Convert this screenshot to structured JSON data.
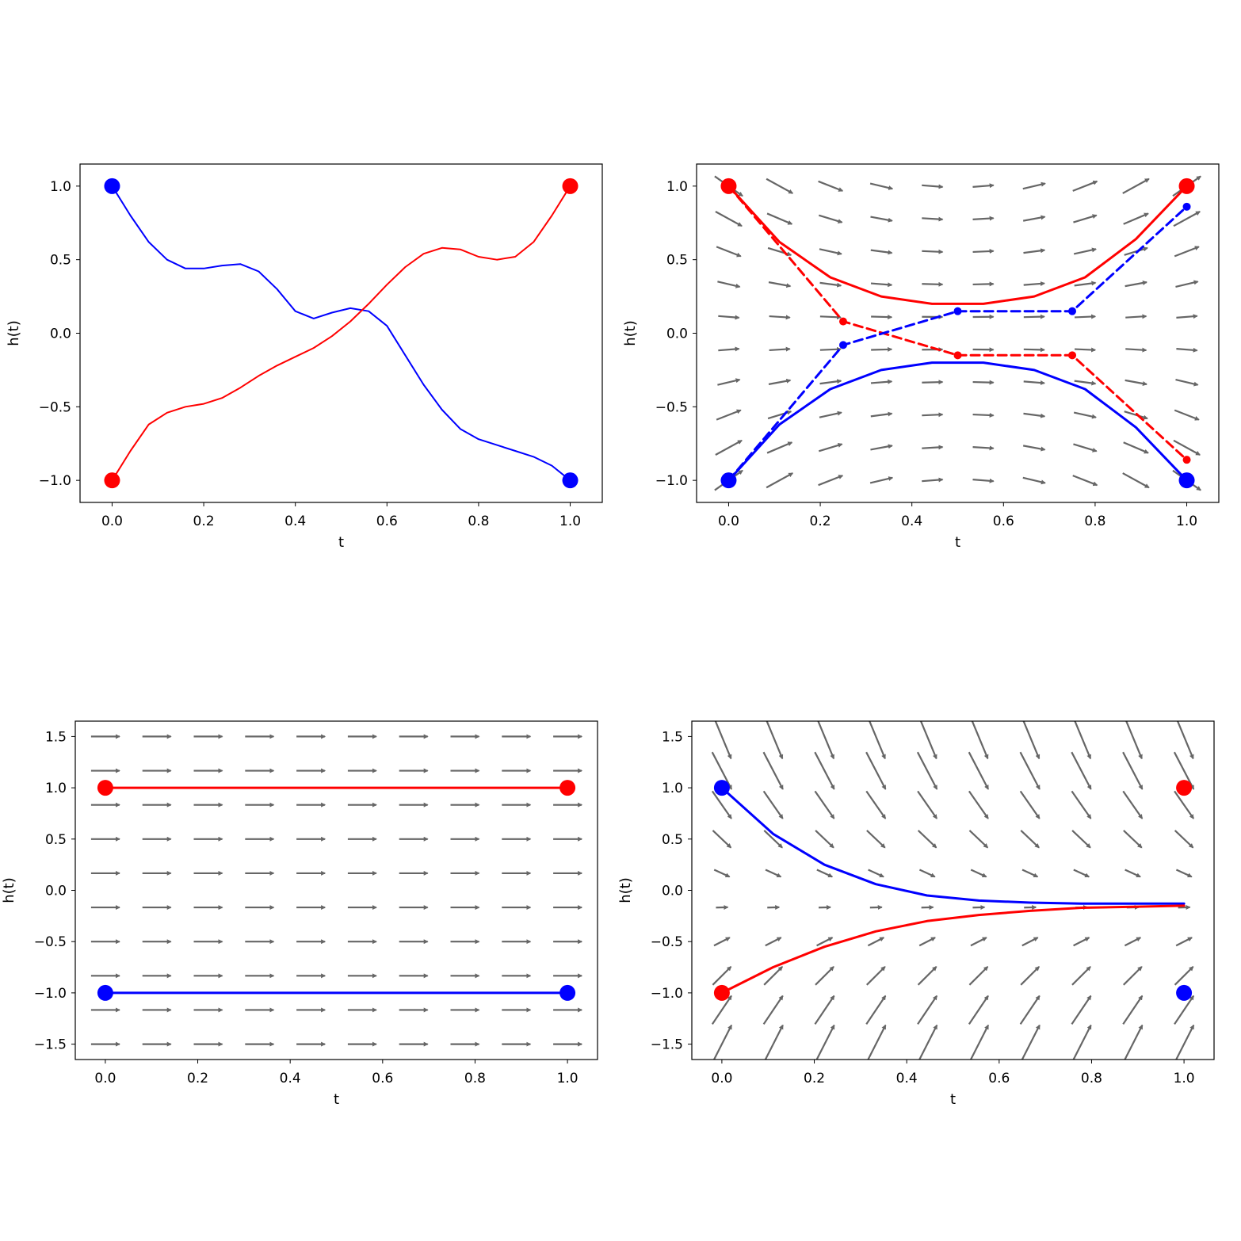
{
  "chart_data": [
    {
      "id": "top-left",
      "type": "line",
      "xlabel": "t",
      "ylabel": "h(t)",
      "xlim": [
        -0.07,
        1.07
      ],
      "ylim": [
        -1.15,
        1.15
      ],
      "xticks": [
        0.0,
        0.2,
        0.4,
        0.6,
        0.8,
        1.0
      ],
      "yticks": [
        -1.0,
        -0.5,
        0.0,
        0.5,
        1.0
      ],
      "vector_field": null,
      "series": [
        {
          "color": "#0000ff",
          "style": "solid",
          "width": 2,
          "x": [
            0.0,
            0.04,
            0.08,
            0.12,
            0.16,
            0.2,
            0.24,
            0.28,
            0.32,
            0.36,
            0.4,
            0.44,
            0.48,
            0.52,
            0.56,
            0.6,
            0.64,
            0.68,
            0.72,
            0.76,
            0.8,
            0.84,
            0.88,
            0.92,
            0.96,
            1.0
          ],
          "y": [
            1.0,
            0.8,
            0.62,
            0.5,
            0.44,
            0.44,
            0.46,
            0.47,
            0.42,
            0.3,
            0.15,
            0.1,
            0.14,
            0.17,
            0.15,
            0.05,
            -0.15,
            -0.35,
            -0.52,
            -0.65,
            -0.72,
            -0.76,
            -0.8,
            -0.84,
            -0.9,
            -1.0
          ]
        },
        {
          "color": "#ff0000",
          "style": "solid",
          "width": 2,
          "x": [
            0.0,
            0.04,
            0.08,
            0.12,
            0.16,
            0.2,
            0.24,
            0.28,
            0.32,
            0.36,
            0.4,
            0.44,
            0.48,
            0.52,
            0.56,
            0.6,
            0.64,
            0.68,
            0.72,
            0.76,
            0.8,
            0.84,
            0.88,
            0.92,
            0.96,
            1.0
          ],
          "y": [
            -1.0,
            -0.8,
            -0.62,
            -0.54,
            -0.5,
            -0.48,
            -0.44,
            -0.37,
            -0.29,
            -0.22,
            -0.16,
            -0.1,
            -0.02,
            0.08,
            0.2,
            0.33,
            0.45,
            0.54,
            0.58,
            0.57,
            0.52,
            0.5,
            0.52,
            0.62,
            0.8,
            1.0
          ]
        }
      ],
      "markers": [
        {
          "x": 0.0,
          "y": 1.0,
          "color": "#0000ff",
          "size": 10
        },
        {
          "x": 1.0,
          "y": -1.0,
          "color": "#0000ff",
          "size": 10
        },
        {
          "x": 0.0,
          "y": -1.0,
          "color": "#ff0000",
          "size": 10
        },
        {
          "x": 1.0,
          "y": 1.0,
          "color": "#ff0000",
          "size": 10
        }
      ]
    },
    {
      "id": "top-right",
      "type": "line",
      "xlabel": "t",
      "ylabel": "h(t)",
      "xlim": [
        -0.07,
        1.07
      ],
      "ylim": [
        -1.15,
        1.15
      ],
      "xticks": [
        0.0,
        0.2,
        0.4,
        0.6,
        0.8,
        1.0
      ],
      "yticks": [
        -1.0,
        -0.5,
        0.0,
        0.5,
        1.0
      ],
      "vector_field": {
        "kind": "saddle",
        "tmin": 0.0,
        "tmax": 1.0,
        "nx": 10,
        "hmin": -1.0,
        "hmax": 1.0,
        "ny": 10
      },
      "series": [
        {
          "color": "#ff0000",
          "style": "solid",
          "width": 3,
          "x": [
            0.0,
            0.111,
            0.222,
            0.333,
            0.444,
            0.556,
            0.667,
            0.778,
            0.889,
            1.0
          ],
          "y": [
            1.0,
            0.62,
            0.38,
            0.25,
            0.2,
            0.2,
            0.25,
            0.38,
            0.64,
            1.0
          ]
        },
        {
          "color": "#0000ff",
          "style": "solid",
          "width": 3,
          "x": [
            0.0,
            0.111,
            0.222,
            0.333,
            0.444,
            0.556,
            0.667,
            0.778,
            0.889,
            1.0
          ],
          "y": [
            -1.0,
            -0.62,
            -0.38,
            -0.25,
            -0.2,
            -0.2,
            -0.25,
            -0.38,
            -0.64,
            -1.0
          ]
        },
        {
          "color": "#ff0000",
          "style": "dashed",
          "width": 3,
          "x": [
            0.0,
            0.25,
            0.5,
            0.75,
            1.0
          ],
          "y": [
            1.0,
            0.08,
            -0.15,
            -0.15,
            -0.86
          ]
        },
        {
          "color": "#0000ff",
          "style": "dashed",
          "width": 3,
          "x": [
            0.0,
            0.25,
            0.5,
            0.75,
            1.0
          ],
          "y": [
            -1.0,
            -0.08,
            0.15,
            0.15,
            0.86
          ]
        }
      ],
      "markers": [
        {
          "x": 0.25,
          "y": 0.08,
          "color": "#ff0000",
          "size": 5
        },
        {
          "x": 0.5,
          "y": -0.15,
          "color": "#ff0000",
          "size": 5
        },
        {
          "x": 0.75,
          "y": -0.15,
          "color": "#ff0000",
          "size": 5
        },
        {
          "x": 1.0,
          "y": -0.86,
          "color": "#ff0000",
          "size": 5
        },
        {
          "x": 0.25,
          "y": -0.08,
          "color": "#0000ff",
          "size": 5
        },
        {
          "x": 0.5,
          "y": 0.15,
          "color": "#0000ff",
          "size": 5
        },
        {
          "x": 0.75,
          "y": 0.15,
          "color": "#0000ff",
          "size": 5
        },
        {
          "x": 1.0,
          "y": 0.86,
          "color": "#0000ff",
          "size": 5
        },
        {
          "x": 0.0,
          "y": 1.0,
          "color": "#ff0000",
          "size": 10
        },
        {
          "x": 1.0,
          "y": 1.0,
          "color": "#ff0000",
          "size": 10
        },
        {
          "x": 0.0,
          "y": -1.0,
          "color": "#0000ff",
          "size": 10
        },
        {
          "x": 1.0,
          "y": -1.0,
          "color": "#0000ff",
          "size": 10
        }
      ]
    },
    {
      "id": "bottom-left",
      "type": "line",
      "xlabel": "t",
      "ylabel": "h(t)",
      "xlim": [
        -0.065,
        1.065
      ],
      "ylim": [
        -1.65,
        1.65
      ],
      "xticks": [
        0.0,
        0.2,
        0.4,
        0.6,
        0.8,
        1.0
      ],
      "yticks": [
        -1.5,
        -1.0,
        -0.5,
        0.0,
        0.5,
        1.0,
        1.5
      ],
      "vector_field": {
        "kind": "uniform",
        "tmin": 0.0,
        "tmax": 1.0,
        "nx": 10,
        "hmin": -1.5,
        "hmax": 1.5,
        "ny": 10
      },
      "series": [
        {
          "color": "#ff0000",
          "style": "solid",
          "width": 3,
          "x": [
            0.0,
            1.0
          ],
          "y": [
            1.0,
            1.0
          ]
        },
        {
          "color": "#0000ff",
          "style": "solid",
          "width": 3,
          "x": [
            0.0,
            1.0
          ],
          "y": [
            -1.0,
            -1.0
          ]
        }
      ],
      "markers": [
        {
          "x": 0.0,
          "y": 1.0,
          "color": "#ff0000",
          "size": 10
        },
        {
          "x": 1.0,
          "y": 1.0,
          "color": "#ff0000",
          "size": 10
        },
        {
          "x": 0.0,
          "y": -1.0,
          "color": "#0000ff",
          "size": 10
        },
        {
          "x": 1.0,
          "y": -1.0,
          "color": "#0000ff",
          "size": 10
        }
      ]
    },
    {
      "id": "bottom-right",
      "type": "line",
      "xlabel": "t",
      "ylabel": "h(t)",
      "xlim": [
        -0.065,
        1.065
      ],
      "ylim": [
        -1.65,
        1.65
      ],
      "xticks": [
        0.0,
        0.2,
        0.4,
        0.6,
        0.8,
        1.0
      ],
      "yticks": [
        -1.5,
        -1.0,
        -0.5,
        0.0,
        0.5,
        1.0,
        1.5
      ],
      "vector_field": {
        "kind": "attract",
        "center": -0.15,
        "tmin": 0.0,
        "tmax": 1.0,
        "nx": 10,
        "hmin": -1.5,
        "hmax": 1.5,
        "ny": 10
      },
      "series": [
        {
          "color": "#0000ff",
          "style": "solid",
          "width": 3,
          "x": [
            0.0,
            0.111,
            0.222,
            0.333,
            0.444,
            0.556,
            0.667,
            0.778,
            0.889,
            1.0
          ],
          "y": [
            1.0,
            0.55,
            0.25,
            0.06,
            -0.05,
            -0.1,
            -0.12,
            -0.13,
            -0.13,
            -0.13
          ]
        },
        {
          "color": "#ff0000",
          "style": "solid",
          "width": 3,
          "x": [
            0.0,
            0.111,
            0.222,
            0.333,
            0.444,
            0.556,
            0.667,
            0.778,
            0.889,
            1.0
          ],
          "y": [
            -1.0,
            -0.75,
            -0.55,
            -0.4,
            -0.3,
            -0.24,
            -0.2,
            -0.17,
            -0.16,
            -0.15
          ]
        }
      ],
      "markers": [
        {
          "x": 0.0,
          "y": 1.0,
          "color": "#0000ff",
          "size": 10
        },
        {
          "x": 1.0,
          "y": -1.0,
          "color": "#0000ff",
          "size": 10
        },
        {
          "x": 0.0,
          "y": -1.0,
          "color": "#ff0000",
          "size": 10
        },
        {
          "x": 1.0,
          "y": 1.0,
          "color": "#ff0000",
          "size": 10
        }
      ]
    }
  ]
}
